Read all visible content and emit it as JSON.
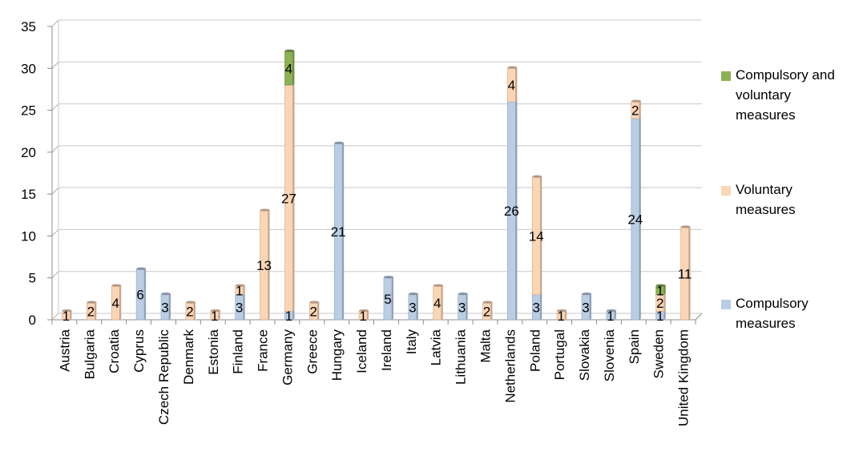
{
  "chart_data": {
    "type": "bar",
    "stacked": true,
    "categories": [
      "Austria",
      "Bulgaria",
      "Croatia",
      "Cyprus",
      "Czech Republic",
      "Denmark",
      "Estonia",
      "Finland",
      "France",
      "Germany",
      "Greece",
      "Hungary",
      "Iceland",
      "Ireland",
      "Italy",
      "Latvia",
      "Lithuania",
      "Malta",
      "Netherlands",
      "Poland",
      "Portugal",
      "Slovakia",
      "Slovenia",
      "Spain",
      "Sweden",
      "United Kingdom"
    ],
    "series": [
      {
        "name": "Compulsory measures",
        "color": "#b9cde5",
        "values": [
          0,
          0,
          0,
          6,
          3,
          0,
          0,
          3,
          0,
          1,
          0,
          21,
          0,
          5,
          3,
          0,
          3,
          0,
          26,
          3,
          0,
          3,
          1,
          24,
          1,
          0
        ]
      },
      {
        "name": "Voluntary measures",
        "color": "#fcd5b5",
        "values": [
          1,
          2,
          4,
          0,
          0,
          2,
          1,
          1,
          13,
          27,
          2,
          0,
          1,
          0,
          0,
          4,
          0,
          2,
          4,
          14,
          1,
          0,
          0,
          2,
          2,
          11
        ]
      },
      {
        "name": "Compulsory and voluntary measures",
        "color": "#8cb153",
        "values": [
          0,
          0,
          0,
          0,
          0,
          0,
          0,
          0,
          0,
          4,
          0,
          0,
          0,
          0,
          0,
          0,
          0,
          0,
          0,
          0,
          0,
          0,
          0,
          0,
          1,
          0
        ]
      }
    ],
    "ylim": [
      0,
      35
    ],
    "yticks": [
      0,
      5,
      10,
      15,
      20,
      25,
      30,
      35
    ],
    "title": "",
    "xlabel": "",
    "ylabel": "",
    "grid": true,
    "legend_position": "right"
  }
}
